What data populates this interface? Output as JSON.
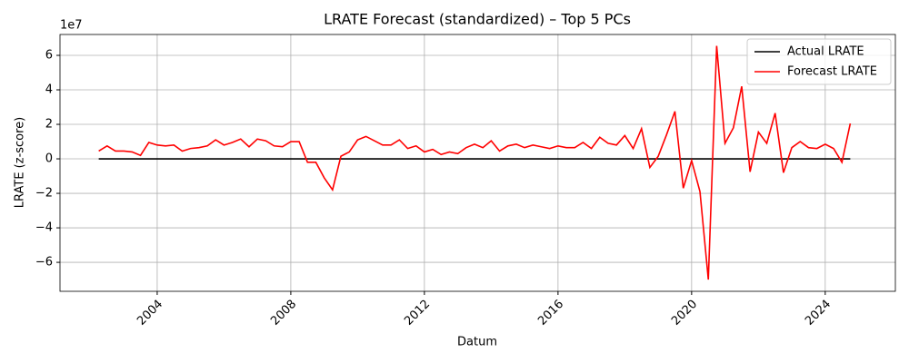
{
  "chart_data": {
    "type": "line",
    "title": "LRATE Forecast (standardized) – Top 5 PCs",
    "xlabel": "Datum",
    "ylabel": "LRATE (z-score)",
    "y_offset_label": "1e7",
    "x": [
      2002.25,
      2002.5,
      2002.75,
      2003,
      2003.25,
      2003.5,
      2003.75,
      2004,
      2004.25,
      2004.5,
      2004.75,
      2005,
      2005.25,
      2005.5,
      2005.75,
      2006,
      2006.25,
      2006.5,
      2006.75,
      2007,
      2007.25,
      2007.5,
      2007.75,
      2008,
      2008.25,
      2008.5,
      2008.75,
      2009,
      2009.25,
      2009.5,
      2009.75,
      2010,
      2010.25,
      2010.5,
      2010.75,
      2011,
      2011.25,
      2011.5,
      2011.75,
      2012,
      2012.25,
      2012.5,
      2012.75,
      2013,
      2013.25,
      2013.5,
      2013.75,
      2014,
      2014.25,
      2014.5,
      2014.75,
      2015,
      2015.25,
      2015.5,
      2015.75,
      2016,
      2016.25,
      2016.5,
      2016.75,
      2017,
      2017.25,
      2017.5,
      2017.75,
      2018,
      2018.25,
      2018.5,
      2018.75,
      2019,
      2019.25,
      2019.5,
      2019.75,
      2020,
      2020.25,
      2020.5,
      2020.75,
      2021,
      2021.25,
      2021.5,
      2021.75,
      2022,
      2022.25,
      2022.5,
      2022.75,
      2023,
      2023.25,
      2023.5,
      2023.75,
      2024,
      2024.25,
      2024.5,
      2024.75
    ],
    "series": [
      {
        "name": "Actual LRATE",
        "color": "#000000",
        "values": [
          0,
          0,
          0,
          0,
          0,
          0,
          0,
          0,
          0,
          0,
          0,
          0,
          0,
          0,
          0,
          0,
          0,
          0,
          0,
          0,
          0,
          0,
          0,
          0,
          0,
          0,
          0,
          0,
          0,
          0,
          0,
          0,
          0,
          0,
          0,
          0,
          0,
          0,
          0,
          0,
          0,
          0,
          0,
          0,
          0,
          0,
          0,
          0,
          0,
          0,
          0,
          0,
          0,
          0,
          0,
          0,
          0,
          0,
          0,
          0,
          0,
          0,
          0,
          0,
          0,
          0,
          0,
          0,
          0,
          0,
          0,
          0,
          0,
          0,
          0,
          0,
          0,
          0,
          0,
          0,
          0,
          0,
          0,
          0,
          0,
          0,
          0,
          0,
          0,
          0,
          0
        ]
      },
      {
        "name": "Forecast LRATE",
        "color": "#ff0000",
        "values": [
          0.45,
          0.75,
          0.45,
          0.45,
          0.4,
          0.2,
          0.95,
          0.8,
          0.75,
          0.8,
          0.45,
          0.6,
          0.65,
          0.75,
          1.1,
          0.8,
          0.95,
          1.15,
          0.7,
          1.15,
          1.05,
          0.75,
          0.7,
          1.0,
          1.0,
          -0.2,
          -0.2,
          -1.1,
          -1.8,
          0.15,
          0.4,
          1.1,
          1.3,
          1.05,
          0.8,
          0.8,
          1.1,
          0.6,
          0.75,
          0.4,
          0.55,
          0.25,
          0.4,
          0.3,
          0.65,
          0.85,
          0.65,
          1.05,
          0.45,
          0.75,
          0.85,
          0.65,
          0.8,
          0.7,
          0.6,
          0.75,
          0.65,
          0.65,
          0.95,
          0.6,
          1.25,
          0.9,
          0.8,
          1.35,
          0.6,
          1.75,
          -0.5,
          0.15,
          1.4,
          2.75,
          -1.7,
          -0.1,
          -1.9,
          -7.0,
          6.55,
          0.9,
          1.8,
          4.2,
          -0.75,
          1.55,
          0.9,
          2.65,
          -0.8,
          0.65,
          1.0,
          0.65,
          0.6,
          0.85,
          0.6,
          -0.2,
          2.05
        ]
      }
    ],
    "xlim": [
      2001.09,
      2026.1
    ],
    "xticks": [
      2004,
      2008,
      2012,
      2016,
      2020,
      2024
    ],
    "ylim": [
      -7.68,
      7.21
    ],
    "yticks": [
      {
        "value": -6,
        "label": "−6"
      },
      {
        "value": -4,
        "label": "−4"
      },
      {
        "value": -2,
        "label": "−2"
      },
      0,
      2,
      4,
      6
    ],
    "grid": true,
    "legend": "upper right"
  }
}
